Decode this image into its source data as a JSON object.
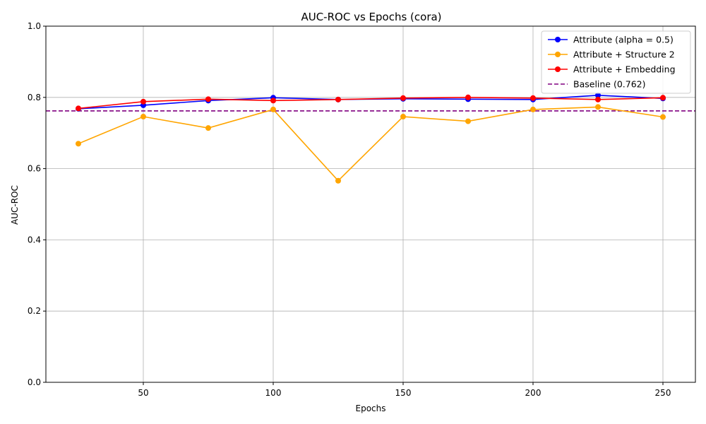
{
  "chart_data": {
    "type": "line",
    "title": "AUC-ROC vs Epochs (cora)",
    "xlabel": "Epochs",
    "ylabel": "AUC-ROC",
    "xlim": [
      12.5,
      262.5
    ],
    "ylim": [
      0.0,
      1.0
    ],
    "xticks": [
      50,
      100,
      150,
      200,
      250
    ],
    "yticks": [
      0.0,
      0.2,
      0.4,
      0.6,
      0.8,
      1.0
    ],
    "ytick_labels": [
      "0.0",
      "0.2",
      "0.4",
      "0.6",
      "0.8",
      "1.0"
    ],
    "grid": "x-and-y",
    "legend_position": "upper-right",
    "x": [
      25,
      50,
      75,
      100,
      125,
      150,
      175,
      200,
      225,
      250
    ],
    "series": [
      {
        "name": "Attribute (alpha = 0.5)",
        "color": "#0000ff",
        "marker": "circle",
        "values": [
          0.768,
          0.778,
          0.791,
          0.799,
          0.794,
          0.796,
          0.795,
          0.794,
          0.806,
          0.797
        ]
      },
      {
        "name": "Attribute + Structure 2",
        "color": "#ffa500",
        "marker": "circle",
        "values": [
          0.67,
          0.746,
          0.714,
          0.766,
          0.566,
          0.746,
          0.733,
          0.766,
          0.773,
          0.745
        ]
      },
      {
        "name": "Attribute + Embedding",
        "color": "#ff0000",
        "marker": "circle",
        "values": [
          0.769,
          0.788,
          0.795,
          0.791,
          0.794,
          0.798,
          0.8,
          0.798,
          0.794,
          0.799
        ]
      }
    ],
    "baseline": {
      "name": "Baseline (0.762)",
      "value": 0.762,
      "color": "#800080",
      "style": "dashed"
    }
  }
}
